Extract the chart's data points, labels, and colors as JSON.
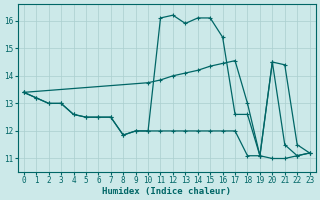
{
  "xlabel": "Humidex (Indice chaleur)",
  "xlim": [
    -0.5,
    23.5
  ],
  "ylim": [
    10.5,
    16.6
  ],
  "yticks": [
    11,
    12,
    13,
    14,
    15,
    16
  ],
  "xticks": [
    0,
    1,
    2,
    3,
    4,
    5,
    6,
    7,
    8,
    9,
    10,
    11,
    12,
    13,
    14,
    15,
    16,
    17,
    18,
    19,
    20,
    21,
    22,
    23
  ],
  "bg_color": "#cce9e9",
  "line_color": "#006666",
  "grid_color": "#aacfcf",
  "curve1_x": [
    0,
    1,
    2,
    3,
    4,
    5,
    6,
    7,
    8,
    9,
    10,
    11,
    12,
    13,
    14,
    15,
    16,
    17,
    18,
    19,
    20,
    21,
    22,
    23
  ],
  "curve1_y": [
    13.4,
    13.2,
    13.0,
    13.0,
    12.6,
    12.5,
    12.5,
    12.5,
    11.85,
    12.0,
    12.0,
    16.1,
    16.2,
    15.9,
    16.1,
    16.1,
    15.4,
    12.6,
    12.6,
    11.1,
    14.5,
    11.5,
    11.1,
    11.2
  ],
  "curve2_x": [
    0,
    1,
    2,
    3,
    4,
    5,
    6,
    7,
    8,
    9,
    10,
    11,
    12,
    13,
    14,
    15,
    16,
    17,
    18,
    19,
    20,
    21,
    22,
    23
  ],
  "curve2_y": [
    13.4,
    13.2,
    13.0,
    13.0,
    12.6,
    12.5,
    12.5,
    12.5,
    11.85,
    12.0,
    12.0,
    12.0,
    12.0,
    12.0,
    12.0,
    12.0,
    12.0,
    12.0,
    11.1,
    11.1,
    11.0,
    11.0,
    11.1,
    11.2
  ],
  "curve3_x": [
    0,
    10,
    11,
    12,
    13,
    14,
    15,
    16,
    17,
    18,
    19,
    20,
    21,
    22,
    23
  ],
  "curve3_y": [
    13.4,
    13.75,
    13.85,
    14.0,
    14.1,
    14.2,
    14.35,
    14.45,
    14.55,
    13.0,
    11.1,
    14.5,
    14.4,
    11.5,
    11.2
  ]
}
